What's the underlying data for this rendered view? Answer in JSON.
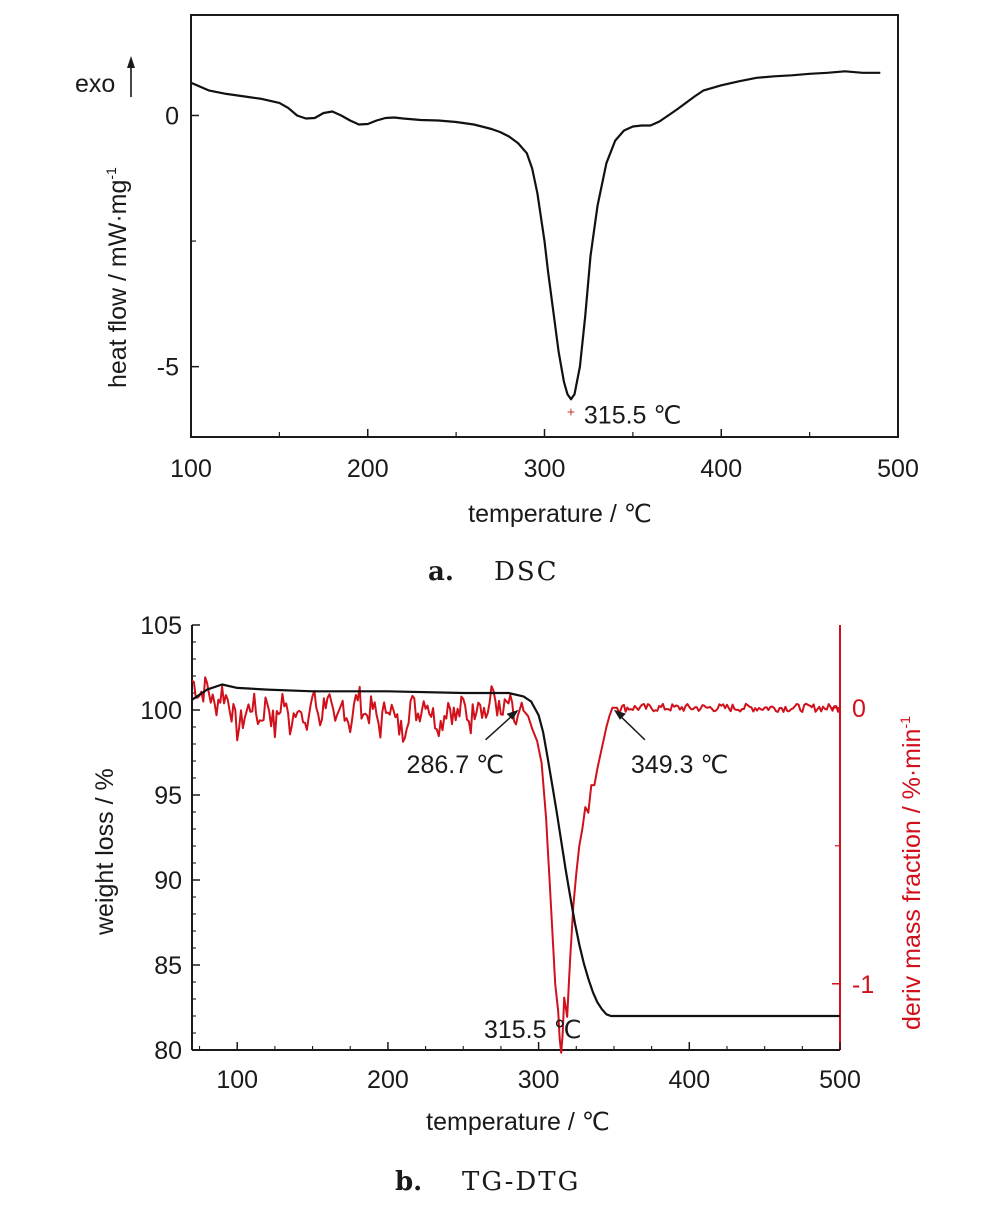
{
  "chart_data": [
    {
      "type": "line",
      "caption_letter": "a.",
      "caption_text": "DSC",
      "xlabel": "temperature / ℃",
      "ylabel": "heat flow / mW·mg",
      "ylabel_sup": "-1",
      "exo_label": "exo",
      "xlim": [
        100,
        500
      ],
      "ylim": [
        -6.4,
        2.0
      ],
      "x_ticks": [
        100,
        200,
        300,
        400,
        500
      ],
      "x_tick_labels": [
        "100",
        "200",
        "300",
        "400",
        "500"
      ],
      "y_ticks": [
        0,
        -5
      ],
      "y_tick_labels": [
        "0",
        "-5"
      ],
      "line_color": "#111111",
      "series": [
        {
          "x": [
            100,
            110,
            120,
            130,
            140,
            150,
            155,
            160,
            165,
            170,
            175,
            180,
            185,
            190,
            195,
            200,
            205,
            210,
            215,
            220,
            230,
            240,
            250,
            260,
            270,
            275,
            280,
            285,
            290,
            293,
            296,
            300,
            302,
            305,
            308,
            311,
            313,
            315,
            317,
            320,
            323,
            326,
            330,
            335,
            340,
            345,
            350,
            355,
            360,
            365,
            370,
            375,
            380,
            385,
            390,
            400,
            410,
            420,
            430,
            440,
            450,
            460,
            470,
            480,
            490
          ],
          "y": [
            0.65,
            0.5,
            0.43,
            0.38,
            0.33,
            0.25,
            0.15,
            0.0,
            -0.06,
            -0.05,
            0.05,
            0.08,
            0.0,
            -0.1,
            -0.18,
            -0.17,
            -0.1,
            -0.05,
            -0.04,
            -0.06,
            -0.09,
            -0.1,
            -0.13,
            -0.18,
            -0.27,
            -0.33,
            -0.42,
            -0.55,
            -0.75,
            -1.05,
            -1.55,
            -2.5,
            -3.1,
            -3.9,
            -4.7,
            -5.3,
            -5.55,
            -5.65,
            -5.55,
            -5.0,
            -4.0,
            -2.8,
            -1.8,
            -0.95,
            -0.5,
            -0.3,
            -0.22,
            -0.2,
            -0.2,
            -0.12,
            0.0,
            0.12,
            0.25,
            0.38,
            0.5,
            0.6,
            0.68,
            0.75,
            0.78,
            0.8,
            0.83,
            0.85,
            0.88,
            0.85,
            0.85
          ]
        }
      ],
      "annotations": [
        {
          "text": "315.5 ℃",
          "x": 315.5,
          "y": -5.65
        }
      ]
    },
    {
      "type": "line",
      "caption_letter": "b.",
      "caption_text": "TG-DTG",
      "xlabel": "temperature / ℃",
      "ylabel_left": "weight loss / %",
      "ylabel_right": "deriv mass fraction / %·min",
      "ylabel_right_sup": "-1",
      "xlim": [
        70,
        500
      ],
      "ylim_left": [
        80,
        105
      ],
      "ylim_right": [
        -1.24,
        0.3
      ],
      "x_ticks": [
        100,
        200,
        300,
        400,
        500
      ],
      "x_tick_labels": [
        "100",
        "200",
        "300",
        "400",
        "500"
      ],
      "y_left_ticks": [
        80,
        85,
        90,
        95,
        100,
        105
      ],
      "y_left_tick_labels": [
        "80",
        "85",
        "90",
        "95",
        "100",
        "105"
      ],
      "y_right_ticks": [
        0,
        -1
      ],
      "y_right_tick_labels": [
        "0",
        "-1"
      ],
      "tg_color": "#111111",
      "dtg_color": "#d0111b",
      "tg_series": {
        "x": [
          70,
          80,
          90,
          100,
          120,
          150,
          200,
          250,
          280,
          290,
          295,
          300,
          303,
          306,
          309,
          312,
          315,
          318,
          321,
          324,
          327,
          330,
          333,
          336,
          339,
          342,
          345,
          348,
          350,
          400,
          450,
          500
        ],
        "y": [
          100.6,
          101.2,
          101.5,
          101.3,
          101.2,
          101.1,
          101.1,
          101.0,
          101.0,
          100.8,
          100.5,
          99.7,
          98.7,
          97.2,
          95.6,
          94.0,
          92.3,
          90.6,
          89.0,
          87.5,
          86.2,
          85.1,
          84.2,
          83.4,
          82.8,
          82.4,
          82.1,
          82.0,
          82.0,
          82.0,
          82.0,
          82.0
        ]
      },
      "dtg_series": {
        "x": [
          70,
          75,
          80,
          85,
          90,
          95,
          100,
          105,
          110,
          115,
          120,
          125,
          130,
          135,
          140,
          145,
          150,
          155,
          160,
          165,
          170,
          175,
          180,
          185,
          190,
          195,
          200,
          205,
          210,
          215,
          220,
          225,
          230,
          235,
          240,
          245,
          250,
          255,
          260,
          265,
          270,
          275,
          280,
          285,
          290,
          293,
          296,
          299,
          302,
          305,
          307,
          309,
          311,
          313,
          314,
          315,
          316,
          317,
          319,
          321,
          323,
          325,
          327,
          329,
          331,
          333,
          335,
          337,
          339,
          341,
          343,
          345,
          347,
          349,
          352,
          360,
          370,
          380,
          390,
          400,
          410,
          420,
          430,
          440,
          450,
          460,
          470,
          480,
          490,
          500
        ],
        "y": [
          0.1,
          0.05,
          0.08,
          0.0,
          0.06,
          0.02,
          -0.08,
          -0.03,
          0.02,
          -0.05,
          0.03,
          -0.08,
          0.04,
          -0.06,
          0.03,
          -0.1,
          0.05,
          -0.04,
          0.06,
          -0.09,
          0.02,
          -0.06,
          0.05,
          -0.03,
          0.0,
          -0.07,
          0.03,
          -0.05,
          -0.09,
          0.02,
          -0.02,
          0.04,
          -0.03,
          -0.06,
          0.02,
          -0.04,
          0.01,
          -0.05,
          0.05,
          -0.03,
          0.06,
          -0.04,
          0.02,
          -0.06,
          -0.01,
          -0.03,
          -0.08,
          -0.12,
          -0.2,
          -0.4,
          -0.6,
          -0.8,
          -1.0,
          -1.1,
          -1.2,
          -1.25,
          -1.18,
          -1.05,
          -1.12,
          -0.9,
          -0.72,
          -0.6,
          -0.5,
          -0.44,
          -0.36,
          -0.38,
          -0.28,
          -0.28,
          -0.22,
          -0.17,
          -0.12,
          -0.07,
          -0.03,
          0.0,
          0.0,
          0.0,
          0.0,
          0.0,
          0.0,
          0.0,
          0.0,
          0.0,
          0.0,
          0.0,
          0.0,
          0.0,
          0.0,
          0.0,
          0.0,
          0.0
        ]
      },
      "annotations": [
        {
          "text": "286.7 ℃",
          "x": 286.7,
          "axis": "right",
          "y": 0.0
        },
        {
          "text": "349.3 ℃",
          "x": 349.3,
          "axis": "right",
          "y": 0.0
        },
        {
          "text": "315.5 ℃",
          "x": 315.5,
          "axis": "right",
          "y": -1.25
        }
      ]
    }
  ]
}
